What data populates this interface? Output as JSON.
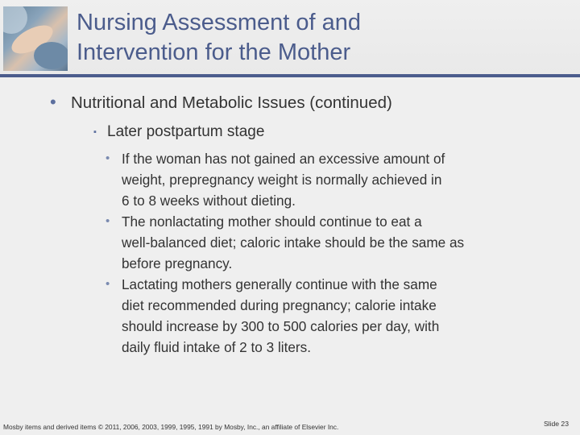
{
  "header": {
    "title_line1": "Nursing Assessment of and",
    "title_line2": "Intervention for the Mother",
    "accent_color": "#4b5c8c"
  },
  "content": {
    "level1": {
      "bullet": "•",
      "text": "Nutritional and Metabolic Issues (continued)"
    },
    "level2": {
      "bullet": "▪",
      "text": "Later postpartum stage"
    },
    "level3": [
      {
        "bullet": "•",
        "lines": [
          "If the woman has not gained an excessive amount of",
          "weight, prepregnancy weight is normally achieved in",
          "6 to 8 weeks without dieting."
        ]
      },
      {
        "bullet": "•",
        "lines": [
          "The nonlactating mother should continue to eat a",
          "well-balanced diet; caloric intake should be the same as",
          "before pregnancy."
        ]
      },
      {
        "bullet": "•",
        "lines": [
          "Lactating mothers generally continue with the  same",
          "diet recommended during pregnancy; calorie intake",
          "should increase by 300 to 500 calories per day, with",
          "daily fluid intake of 2 to 3 liters."
        ]
      }
    ]
  },
  "footer": {
    "copyright": "Mosby items and derived items © 2011, 2006, 2003, 1999, 1995, 1991 by Mosby, Inc., an affiliate of Elsevier Inc.",
    "slide_number": "Slide 23"
  }
}
